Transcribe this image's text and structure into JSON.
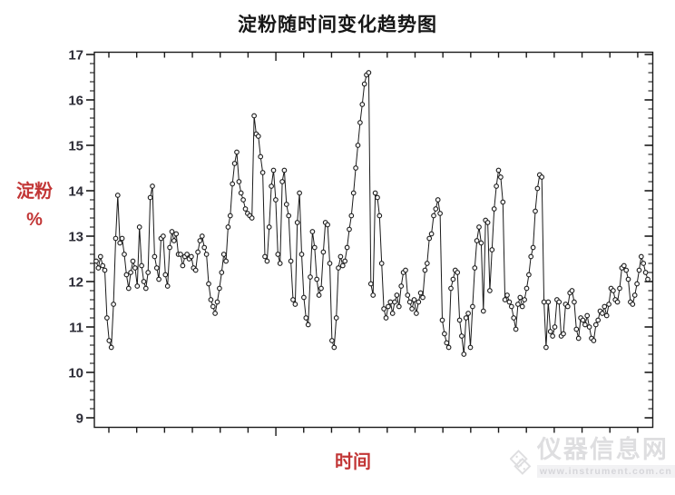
{
  "title": "淀粉随时间变化趋势图",
  "watermark": {
    "site_name": "仪器信息网",
    "site_url": "www.instrument.com.cn"
  },
  "chart_data": {
    "type": "line",
    "title": "淀粉随时间变化趋势图",
    "xlabel": "时间",
    "ylabel_lines": [
      "淀粉",
      "%"
    ],
    "ylim": [
      9,
      17
    ],
    "y_ticks": [
      9,
      10,
      11,
      12,
      13,
      14,
      15,
      16,
      17
    ],
    "y_minor_step": 0.2,
    "x_tick_count": 20,
    "x_major_tick_index": 6,
    "x_ticks_labeled": false,
    "grid": false,
    "legend_position": "none",
    "marker": "open-circle",
    "line_color": "#1a1a1a",
    "marker_fill": "#ffffff",
    "axis_label_color": "#c23636",
    "tick_label_color": "#2c2c36",
    "series": [
      {
        "name": "淀粉%",
        "values": [
          12.45,
          12.3,
          12.55,
          12.35,
          12.25,
          11.2,
          10.7,
          10.55,
          11.5,
          12.95,
          13.9,
          12.85,
          12.95,
          12.6,
          12.15,
          11.85,
          12.2,
          12.45,
          12.3,
          11.9,
          13.2,
          12.35,
          12.0,
          11.85,
          12.2,
          13.85,
          14.1,
          12.55,
          12.3,
          12.05,
          12.95,
          13.0,
          12.15,
          11.9,
          12.75,
          13.1,
          12.9,
          13.05,
          12.6,
          12.6,
          12.35,
          12.55,
          12.6,
          12.5,
          12.55,
          12.3,
          12.25,
          12.65,
          12.9,
          13.0,
          12.75,
          12.6,
          11.95,
          11.6,
          11.45,
          11.3,
          11.55,
          11.85,
          12.2,
          12.6,
          12.45,
          13.2,
          13.45,
          14.15,
          14.6,
          14.85,
          14.2,
          13.95,
          13.8,
          13.6,
          13.5,
          13.45,
          13.4,
          15.65,
          15.25,
          15.2,
          14.75,
          14.4,
          12.55,
          12.45,
          13.2,
          14.1,
          14.45,
          13.8,
          12.6,
          12.4,
          14.2,
          14.45,
          13.7,
          13.45,
          12.45,
          11.6,
          11.5,
          13.3,
          13.95,
          12.6,
          11.65,
          11.2,
          11.05,
          12.1,
          13.1,
          12.75,
          12.05,
          11.7,
          11.85,
          12.65,
          13.3,
          13.25,
          12.4,
          10.7,
          10.55,
          11.2,
          12.3,
          12.55,
          12.35,
          12.45,
          12.75,
          13.15,
          13.45,
          13.95,
          14.5,
          15.0,
          15.5,
          15.9,
          16.35,
          16.55,
          16.6,
          11.95,
          11.7,
          13.95,
          13.85,
          13.45,
          12.4,
          11.4,
          11.2,
          11.45,
          11.55,
          11.3,
          11.55,
          11.7,
          11.45,
          11.9,
          12.2,
          12.25,
          11.7,
          11.55,
          11.4,
          11.6,
          11.3,
          11.55,
          11.75,
          11.65,
          12.25,
          12.4,
          12.95,
          13.05,
          13.45,
          13.6,
          13.8,
          13.5,
          11.15,
          10.85,
          10.65,
          10.55,
          11.85,
          12.05,
          12.25,
          12.2,
          11.15,
          10.8,
          10.4,
          11.2,
          11.3,
          10.55,
          11.45,
          12.3,
          12.9,
          13.2,
          12.85,
          11.35,
          13.35,
          13.3,
          11.8,
          12.7,
          13.6,
          14.1,
          14.45,
          14.3,
          13.75,
          11.6,
          11.7,
          11.55,
          11.45,
          11.2,
          10.95,
          11.5,
          11.65,
          11.45,
          11.6,
          11.85,
          12.15,
          12.55,
          12.75,
          13.55,
          14.05,
          14.35,
          14.3,
          11.55,
          10.55,
          11.55,
          10.9,
          10.8,
          11.0,
          11.6,
          11.55,
          10.8,
          10.85,
          11.5,
          11.45,
          11.75,
          11.8,
          11.55,
          10.95,
          10.75,
          11.2,
          11.15,
          11.05,
          11.25,
          11.0,
          10.75,
          10.7,
          11.05,
          11.15,
          11.35,
          11.3,
          11.45,
          11.25,
          11.5,
          11.85,
          11.8,
          11.6,
          11.55,
          11.85,
          12.3,
          12.35,
          12.25,
          12.05,
          11.55,
          11.5,
          11.7,
          11.95,
          12.25,
          12.55,
          12.4,
          12.2,
          12.05
        ]
      }
    ]
  }
}
